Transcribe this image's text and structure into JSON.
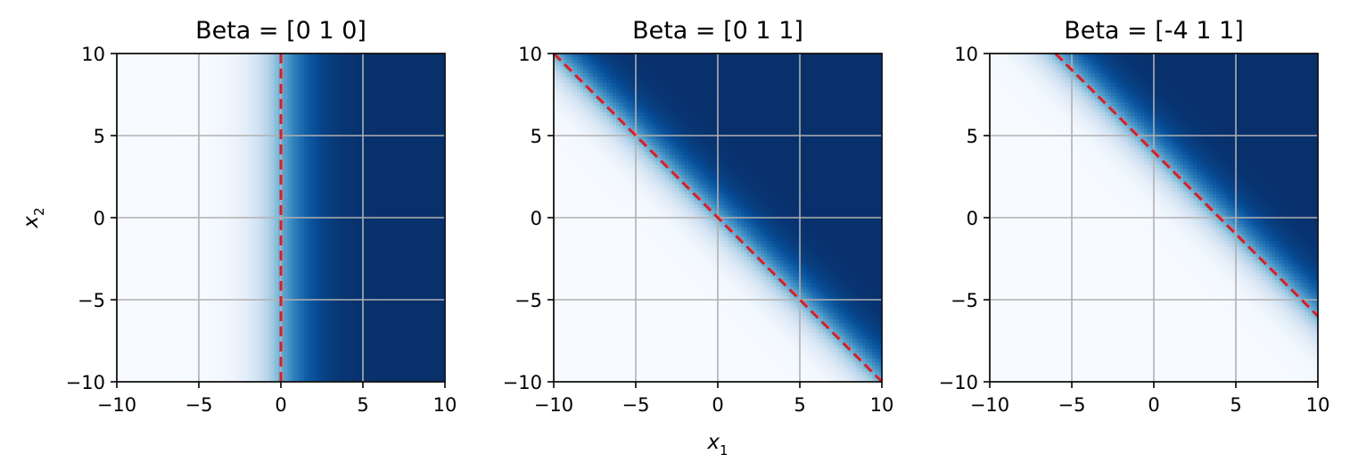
{
  "chart_data": [
    {
      "type": "heatmap",
      "title": "Beta = [0 1 0]",
      "beta": [
        0,
        1,
        0
      ],
      "xlim": [
        -10,
        10
      ],
      "ylim": [
        -10,
        10
      ],
      "xticks": [
        -10,
        -5,
        0,
        5,
        10
      ],
      "yticks": [
        -10,
        -5,
        0,
        5,
        10
      ],
      "xlabel": "",
      "ylabel": "x2",
      "colormap": "Blues",
      "grid": true,
      "decision_boundary": {
        "x": [
          0,
          0
        ],
        "y": [
          -10,
          10
        ],
        "color": "#e41a1c",
        "style": "dashed"
      }
    },
    {
      "type": "heatmap",
      "title": "Beta = [0 1 1]",
      "beta": [
        0,
        1,
        1
      ],
      "xlim": [
        -10,
        10
      ],
      "ylim": [
        -10,
        10
      ],
      "xticks": [
        -10,
        -5,
        0,
        5,
        10
      ],
      "yticks": [
        -10,
        -5,
        0,
        5,
        10
      ],
      "xlabel": "x1",
      "ylabel": "",
      "colormap": "Blues",
      "grid": true,
      "decision_boundary": {
        "x": [
          -10,
          10
        ],
        "y": [
          10,
          -10
        ],
        "color": "#e41a1c",
        "style": "dashed"
      }
    },
    {
      "type": "heatmap",
      "title": "Beta = [-4  1  1]",
      "beta": [
        -4,
        1,
        1
      ],
      "xlim": [
        -10,
        10
      ],
      "ylim": [
        -10,
        10
      ],
      "xticks": [
        -10,
        -5,
        0,
        5,
        10
      ],
      "yticks": [
        -10,
        -5,
        0,
        5,
        10
      ],
      "xlabel": "",
      "ylabel": "",
      "colormap": "Blues",
      "grid": true,
      "decision_boundary": {
        "x": [
          -6,
          10
        ],
        "y": [
          10,
          -6
        ],
        "color": "#e41a1c",
        "style": "dashed"
      }
    }
  ],
  "colors": {
    "grid": "#b0b0b0",
    "boundary": "#e41a1c",
    "cmap_low": "#f7fbff",
    "cmap_high": "#08306b"
  }
}
